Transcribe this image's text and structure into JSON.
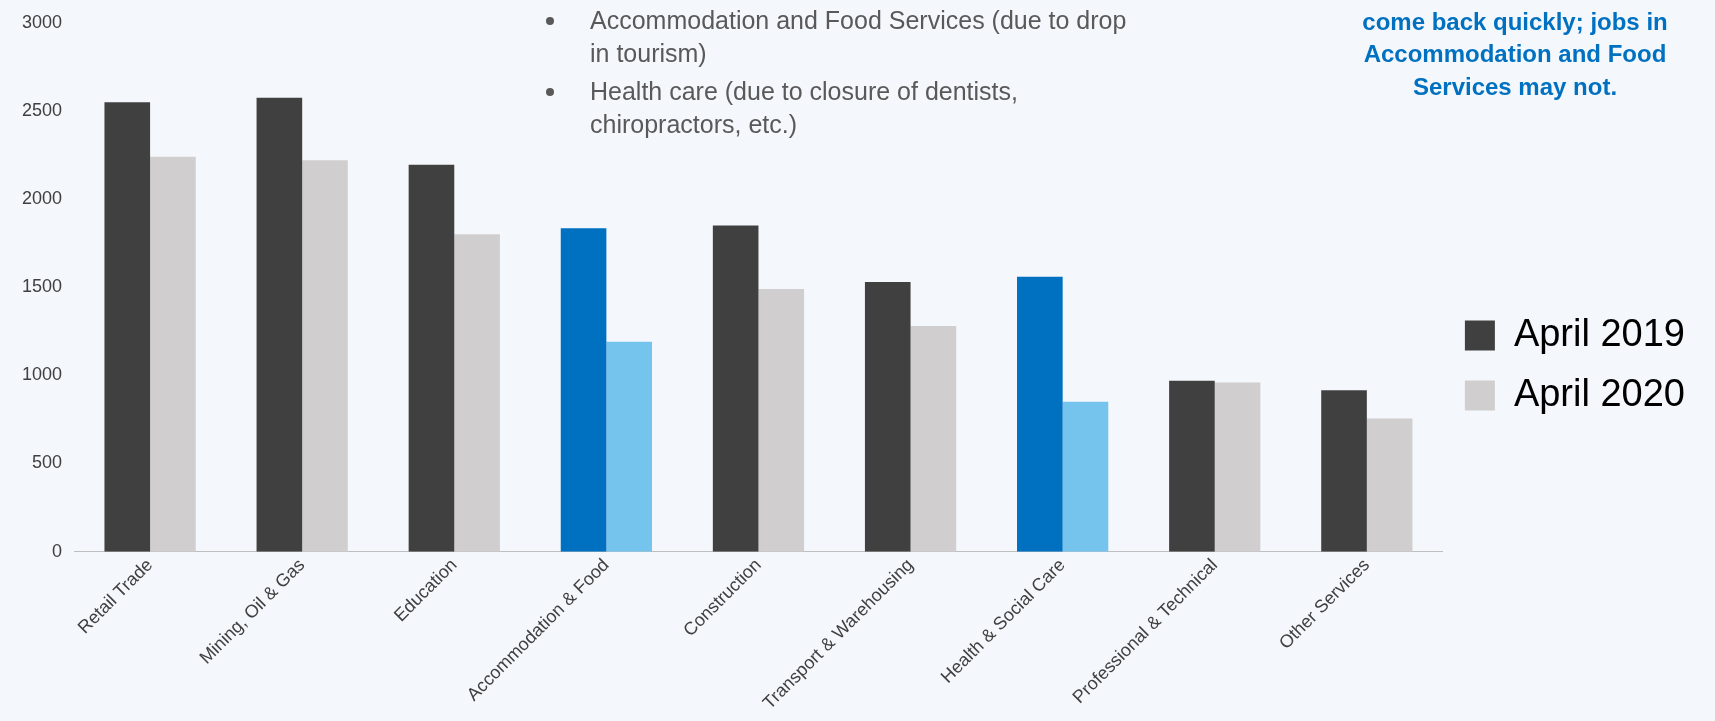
{
  "chart_data": {
    "type": "bar",
    "categories": [
      "Retail Trade",
      "Mining, Oil & Gas",
      "Education",
      "Accommodation & Food",
      "Construction",
      "Transport & Warehousing",
      "Health & Social Care",
      "Professional & Technical",
      "Other Services"
    ],
    "series": [
      {
        "name": "April 2019",
        "color": "#404040",
        "colors": [
          "#404040",
          "#404040",
          "#404040",
          "#0070c0",
          "#404040",
          "#404040",
          "#0070c0",
          "#404040",
          "#404040"
        ],
        "values": [
          2550,
          2575,
          2195,
          1835,
          1850,
          1530,
          1560,
          970,
          915
        ]
      },
      {
        "name": "April 2020",
        "color": "#d0cecf",
        "colors": [
          "#d0cecf",
          "#d0cecf",
          "#d0cecf",
          "#75c4ee",
          "#d0cecf",
          "#d0cecf",
          "#75c4ee",
          "#d0cecf",
          "#d0cecf"
        ],
        "values": [
          2240,
          2220,
          1800,
          1190,
          1490,
          1280,
          850,
          960,
          755
        ]
      }
    ],
    "ylim": [
      0,
      3000
    ],
    "yticks": [
      0,
      500,
      1000,
      1500,
      2000,
      2500,
      3000
    ],
    "grid": false,
    "legend": "right",
    "annotations": [
      "Accommodation and Food Services (due to drop in tourism)",
      "Health care (due to closure of dentists, chiropractors, etc.)",
      "come back quickly; jobs in Accommodation and Food Services may not."
    ]
  }
}
